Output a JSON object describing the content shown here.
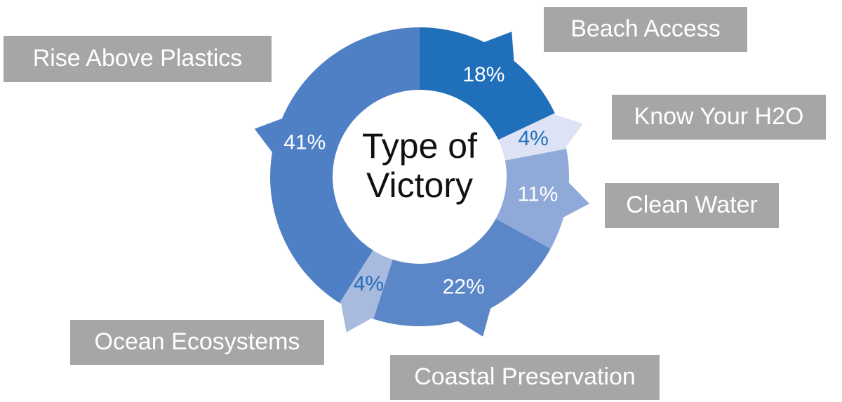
{
  "chart_data": {
    "type": "donut",
    "title": "Type of Victory",
    "categories": [
      "Beach Access",
      "Know Your H2O",
      "Clean Water",
      "Coastal Preservation",
      "Ocean Ecosystems",
      "Rise Above Plastics"
    ],
    "values": [
      18,
      4,
      11,
      22,
      4,
      41
    ],
    "value_labels": [
      "18%",
      "4%",
      "11%",
      "22%",
      "4%",
      "41%"
    ],
    "colors": [
      "#1f6fba",
      "#dde3f4",
      "#8fa9d8",
      "#5b86c7",
      "#a9badf",
      "#4f7fc4"
    ]
  }
}
